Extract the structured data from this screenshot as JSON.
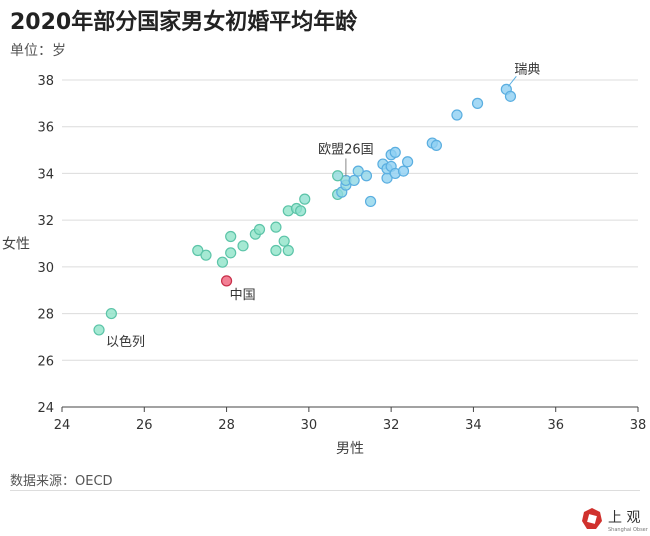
{
  "title": "2020年部分国家男女初婚平均年龄",
  "unit_label": "单位：岁",
  "source": "数据来源：OECD",
  "logo": {
    "text": "上观",
    "subtext": "Shanghai Observer",
    "color": "#d0312d"
  },
  "colors": {
    "green": "#8fe3c8",
    "blue": "#8fd0f2",
    "highlight": "#f0607a"
  },
  "chart_data": {
    "type": "scatter",
    "title": "2020年部分国家男女初婚平均年龄",
    "xlabel": "男性",
    "ylabel": "女性",
    "xlim": [
      24,
      38
    ],
    "ylim": [
      24,
      38
    ],
    "xticks": [
      24,
      26,
      28,
      30,
      32,
      34,
      36,
      38
    ],
    "yticks": [
      24,
      26,
      28,
      30,
      32,
      34,
      36,
      38
    ],
    "grid": "horizontal",
    "points": [
      {
        "x": 24.9,
        "y": 27.3,
        "label": "以色列"
      },
      {
        "x": 25.2,
        "y": 28.0
      },
      {
        "x": 28.0,
        "y": 29.4,
        "label": "中国",
        "highlight": true
      },
      {
        "x": 27.3,
        "y": 30.7
      },
      {
        "x": 27.5,
        "y": 30.5
      },
      {
        "x": 28.1,
        "y": 31.3
      },
      {
        "x": 27.9,
        "y": 30.2
      },
      {
        "x": 28.1,
        "y": 30.6
      },
      {
        "x": 28.4,
        "y": 30.9
      },
      {
        "x": 28.7,
        "y": 31.4
      },
      {
        "x": 28.8,
        "y": 31.6
      },
      {
        "x": 29.2,
        "y": 31.7
      },
      {
        "x": 29.2,
        "y": 30.7
      },
      {
        "x": 29.4,
        "y": 31.1
      },
      {
        "x": 29.5,
        "y": 30.7
      },
      {
        "x": 29.5,
        "y": 32.4
      },
      {
        "x": 29.7,
        "y": 32.5
      },
      {
        "x": 29.8,
        "y": 32.4
      },
      {
        "x": 29.9,
        "y": 32.9
      },
      {
        "x": 30.7,
        "y": 33.1
      },
      {
        "x": 30.8,
        "y": 33.2
      },
      {
        "x": 30.9,
        "y": 33.5
      },
      {
        "x": 30.9,
        "y": 33.7,
        "label": "欧盟26国"
      },
      {
        "x": 30.7,
        "y": 33.9
      },
      {
        "x": 31.1,
        "y": 33.7
      },
      {
        "x": 31.2,
        "y": 34.1
      },
      {
        "x": 31.4,
        "y": 33.9
      },
      {
        "x": 31.5,
        "y": 32.8
      },
      {
        "x": 31.8,
        "y": 34.4
      },
      {
        "x": 31.9,
        "y": 33.8
      },
      {
        "x": 31.9,
        "y": 34.2
      },
      {
        "x": 32.0,
        "y": 34.3
      },
      {
        "x": 32.0,
        "y": 34.8
      },
      {
        "x": 32.1,
        "y": 34.9
      },
      {
        "x": 32.1,
        "y": 34.0
      },
      {
        "x": 32.3,
        "y": 34.1
      },
      {
        "x": 32.4,
        "y": 34.5
      },
      {
        "x": 33.0,
        "y": 35.3
      },
      {
        "x": 33.1,
        "y": 35.2
      },
      {
        "x": 33.6,
        "y": 36.5
      },
      {
        "x": 34.1,
        "y": 37.0
      },
      {
        "x": 34.8,
        "y": 37.6,
        "label": "瑞典"
      },
      {
        "x": 34.9,
        "y": 37.3
      }
    ]
  }
}
